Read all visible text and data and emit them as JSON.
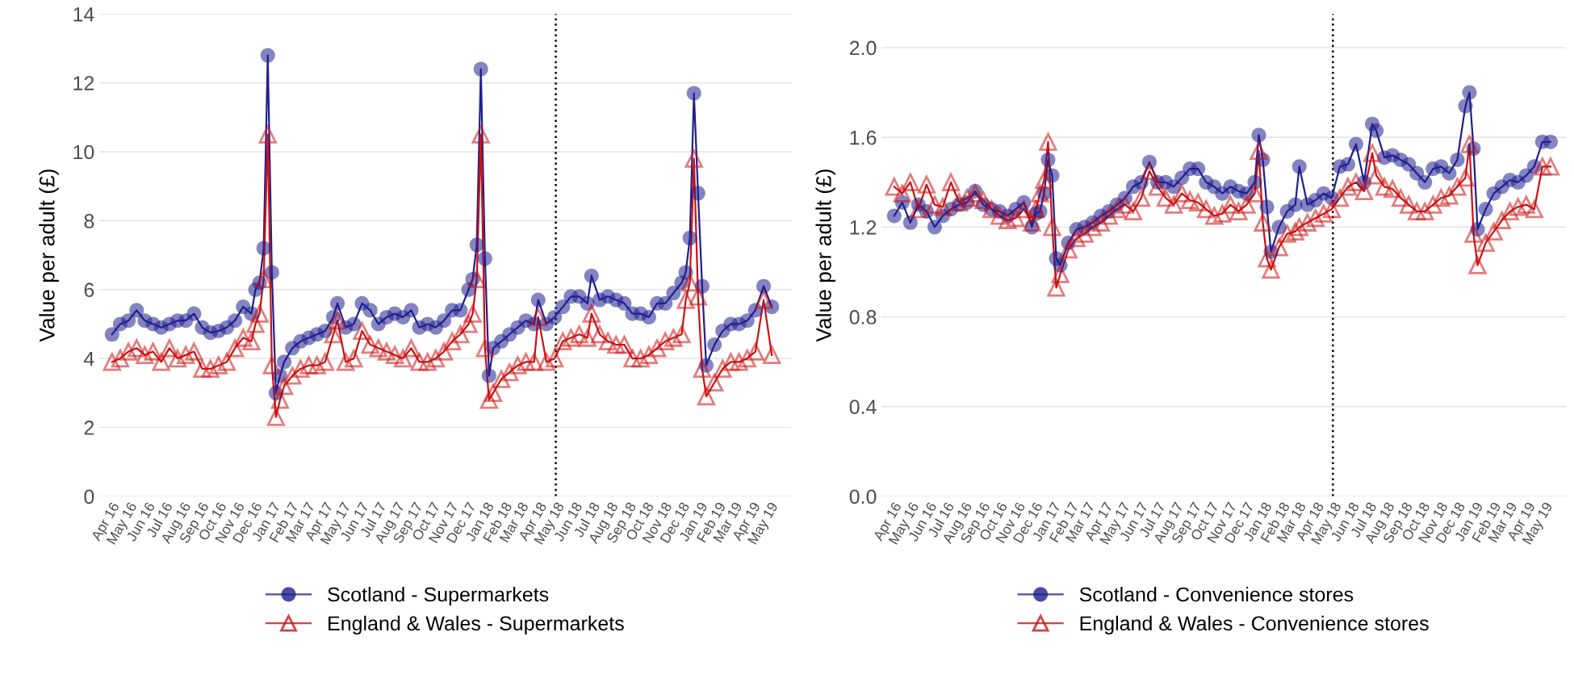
{
  "chart_data": [
    {
      "type": "line",
      "ylabel": "Value per adult (£)",
      "xlim": [
        "2016-03-12",
        "2019-06-08"
      ],
      "ylim": [
        0,
        14
      ],
      "yticks": [
        0,
        2,
        4,
        6,
        8,
        10,
        12,
        14
      ],
      "xticks": [
        {
          "value": "2016-04-01",
          "label": "Apr 16"
        },
        {
          "value": "2016-05-01",
          "label": "May 16"
        },
        {
          "value": "2016-06-01",
          "label": "Jun 16"
        },
        {
          "value": "2016-07-01",
          "label": "Jul 16"
        },
        {
          "value": "2016-08-01",
          "label": "Aug 16"
        },
        {
          "value": "2016-09-01",
          "label": "Sep 16"
        },
        {
          "value": "2016-10-01",
          "label": "Oct 16"
        },
        {
          "value": "2016-11-01",
          "label": "Nov 16"
        },
        {
          "value": "2016-12-01",
          "label": "Dec 16"
        },
        {
          "value": "2017-01-01",
          "label": "Jan 17"
        },
        {
          "value": "2017-02-01",
          "label": "Feb 17"
        },
        {
          "value": "2017-03-01",
          "label": "Mar 17"
        },
        {
          "value": "2017-04-01",
          "label": "Apr 17"
        },
        {
          "value": "2017-05-01",
          "label": "May 17"
        },
        {
          "value": "2017-06-01",
          "label": "Jun 17"
        },
        {
          "value": "2017-07-01",
          "label": "Jul 17"
        },
        {
          "value": "2017-08-01",
          "label": "Aug 17"
        },
        {
          "value": "2017-09-01",
          "label": "Sep 17"
        },
        {
          "value": "2017-10-01",
          "label": "Oct 17"
        },
        {
          "value": "2017-11-01",
          "label": "Nov 17"
        },
        {
          "value": "2017-12-01",
          "label": "Dec 17"
        },
        {
          "value": "2018-01-01",
          "label": "Jan 18"
        },
        {
          "value": "2018-02-01",
          "label": "Feb 18"
        },
        {
          "value": "2018-03-01",
          "label": "Mar 18"
        },
        {
          "value": "2018-04-01",
          "label": "Apr 18"
        },
        {
          "value": "2018-05-01",
          "label": "May 18"
        },
        {
          "value": "2018-06-01",
          "label": "Jun 18"
        },
        {
          "value": "2018-07-01",
          "label": "Jul 18"
        },
        {
          "value": "2018-08-01",
          "label": "Aug 18"
        },
        {
          "value": "2018-09-01",
          "label": "Sep 18"
        },
        {
          "value": "2018-10-01",
          "label": "Oct 18"
        },
        {
          "value": "2018-11-01",
          "label": "Nov 18"
        },
        {
          "value": "2018-12-01",
          "label": "Dec 18"
        },
        {
          "value": "2019-01-01",
          "label": "Jan 19"
        },
        {
          "value": "2019-02-01",
          "label": "Feb 19"
        },
        {
          "value": "2019-03-01",
          "label": "Mar 19"
        },
        {
          "value": "2019-04-01",
          "label": "Apr 19"
        },
        {
          "value": "2019-05-01",
          "label": "May 19"
        }
      ],
      "grid": "y",
      "legend": "bottom",
      "ref_lines": [
        {
          "axis": "x",
          "value": "2018-05-01",
          "line_style": "dotted",
          "color": "#000000"
        }
      ],
      "series": [
        {
          "name": "Scotland - Supermarkets",
          "color": "#1f1f8f",
          "marker": "circle",
          "x": [
            "2016-04-03",
            "2016-04-17",
            "2016-05-01",
            "2016-05-15",
            "2016-05-29",
            "2016-06-12",
            "2016-06-26",
            "2016-07-10",
            "2016-07-24",
            "2016-08-07",
            "2016-08-21",
            "2016-09-04",
            "2016-09-18",
            "2016-10-02",
            "2016-10-16",
            "2016-10-30",
            "2016-11-13",
            "2016-11-27",
            "2016-12-04",
            "2016-12-11",
            "2016-12-18",
            "2016-12-25",
            "2017-01-01",
            "2017-01-08",
            "2017-01-15",
            "2017-01-22",
            "2017-02-05",
            "2017-02-19",
            "2017-03-05",
            "2017-03-19",
            "2017-04-02",
            "2017-04-16",
            "2017-04-23",
            "2017-05-07",
            "2017-05-21",
            "2017-06-04",
            "2017-06-18",
            "2017-07-02",
            "2017-07-16",
            "2017-07-30",
            "2017-08-13",
            "2017-08-27",
            "2017-09-10",
            "2017-09-24",
            "2017-10-08",
            "2017-10-22",
            "2017-11-05",
            "2017-11-19",
            "2017-12-03",
            "2017-12-10",
            "2017-12-17",
            "2017-12-24",
            "2017-12-31",
            "2018-01-07",
            "2018-01-14",
            "2018-01-28",
            "2018-02-11",
            "2018-02-25",
            "2018-03-11",
            "2018-03-25",
            "2018-04-01",
            "2018-04-15",
            "2018-04-29",
            "2018-05-13",
            "2018-05-27",
            "2018-06-10",
            "2018-06-24",
            "2018-07-01",
            "2018-07-15",
            "2018-07-29",
            "2018-08-12",
            "2018-08-26",
            "2018-09-09",
            "2018-09-23",
            "2018-10-07",
            "2018-10-21",
            "2018-11-04",
            "2018-11-18",
            "2018-12-02",
            "2018-12-09",
            "2018-12-16",
            "2018-12-23",
            "2018-12-30",
            "2019-01-06",
            "2019-01-13",
            "2019-01-27",
            "2019-02-10",
            "2019-02-24",
            "2019-03-10",
            "2019-03-24",
            "2019-04-07",
            "2019-04-21",
            "2019-05-05"
          ],
          "values": [
            4.7,
            5.0,
            5.1,
            5.4,
            5.1,
            5.0,
            4.9,
            5.0,
            5.1,
            5.1,
            5.3,
            4.9,
            4.75,
            4.8,
            4.9,
            5.1,
            5.5,
            5.3,
            6.0,
            6.2,
            7.2,
            12.8,
            6.5,
            3.0,
            3.5,
            3.9,
            4.3,
            4.5,
            4.6,
            4.7,
            4.8,
            5.2,
            5.6,
            4.9,
            5.0,
            5.6,
            5.4,
            5.0,
            5.2,
            5.3,
            5.2,
            5.4,
            4.9,
            5.0,
            4.9,
            5.1,
            5.4,
            5.4,
            6.0,
            6.3,
            7.3,
            12.4,
            6.9,
            3.5,
            4.3,
            4.5,
            4.7,
            4.9,
            5.1,
            5.0,
            5.7,
            5.0,
            5.2,
            5.5,
            5.8,
            5.8,
            5.6,
            6.4,
            5.7,
            5.8,
            5.7,
            5.6,
            5.3,
            5.3,
            5.2,
            5.6,
            5.6,
            5.9,
            6.2,
            6.5,
            7.5,
            11.7,
            8.8,
            6.1,
            3.8,
            4.4,
            4.8,
            5.0,
            5.0,
            5.1,
            5.4,
            6.1,
            5.5
          ]
        },
        {
          "name": "England & Wales - Supermarkets",
          "color": "#cc1111",
          "marker": "triangle",
          "x": [
            "2016-04-03",
            "2016-04-17",
            "2016-05-01",
            "2016-05-15",
            "2016-05-29",
            "2016-06-12",
            "2016-06-26",
            "2016-07-10",
            "2016-07-24",
            "2016-08-07",
            "2016-08-21",
            "2016-09-04",
            "2016-09-18",
            "2016-10-02",
            "2016-10-16",
            "2016-10-30",
            "2016-11-13",
            "2016-11-27",
            "2016-12-04",
            "2016-12-11",
            "2016-12-18",
            "2016-12-25",
            "2017-01-01",
            "2017-01-08",
            "2017-01-15",
            "2017-01-22",
            "2017-02-05",
            "2017-02-19",
            "2017-03-05",
            "2017-03-19",
            "2017-04-02",
            "2017-04-16",
            "2017-04-23",
            "2017-05-07",
            "2017-05-21",
            "2017-06-04",
            "2017-06-18",
            "2017-07-02",
            "2017-07-16",
            "2017-07-30",
            "2017-08-13",
            "2017-08-27",
            "2017-09-10",
            "2017-09-24",
            "2017-10-08",
            "2017-10-22",
            "2017-11-05",
            "2017-11-19",
            "2017-12-03",
            "2017-12-10",
            "2017-12-17",
            "2017-12-24",
            "2017-12-31",
            "2018-01-07",
            "2018-01-14",
            "2018-01-28",
            "2018-02-11",
            "2018-02-25",
            "2018-03-11",
            "2018-03-25",
            "2018-04-01",
            "2018-04-15",
            "2018-04-29",
            "2018-05-13",
            "2018-05-27",
            "2018-06-10",
            "2018-06-24",
            "2018-07-01",
            "2018-07-15",
            "2018-07-29",
            "2018-08-12",
            "2018-08-26",
            "2018-09-09",
            "2018-09-23",
            "2018-10-07",
            "2018-10-21",
            "2018-11-04",
            "2018-11-18",
            "2018-12-02",
            "2018-12-09",
            "2018-12-16",
            "2018-12-23",
            "2018-12-30",
            "2019-01-06",
            "2019-01-13",
            "2019-01-27",
            "2019-02-10",
            "2019-02-24",
            "2019-03-10",
            "2019-03-24",
            "2019-04-07",
            "2019-04-21",
            "2019-05-05"
          ],
          "values": [
            3.9,
            4.0,
            4.2,
            4.3,
            4.1,
            4.2,
            3.9,
            4.3,
            4.0,
            4.1,
            4.2,
            3.7,
            3.7,
            3.8,
            3.9,
            4.3,
            4.6,
            4.5,
            5.0,
            5.3,
            6.3,
            10.5,
            3.8,
            2.3,
            2.8,
            3.2,
            3.5,
            3.7,
            3.8,
            3.8,
            3.9,
            4.7,
            5.1,
            3.9,
            4.0,
            4.8,
            4.4,
            4.3,
            4.2,
            4.1,
            4.0,
            4.3,
            3.9,
            3.9,
            4.0,
            4.2,
            4.5,
            4.7,
            5.0,
            5.3,
            6.3,
            10.5,
            4.3,
            2.8,
            3.0,
            3.4,
            3.6,
            3.8,
            3.9,
            3.9,
            5.2,
            3.9,
            4.0,
            4.5,
            4.6,
            4.7,
            4.6,
            5.3,
            4.7,
            4.5,
            4.4,
            4.4,
            4.0,
            4.0,
            4.1,
            4.3,
            4.5,
            4.6,
            4.7,
            5.7,
            6.2,
            9.8,
            5.8,
            3.7,
            2.9,
            3.3,
            3.7,
            3.9,
            3.9,
            4.0,
            4.2,
            5.7,
            4.1
          ]
        }
      ]
    },
    {
      "type": "line",
      "ylabel": "Value per adult (£)",
      "xlim": [
        "2016-03-12",
        "2019-06-08"
      ],
      "ylim": [
        0,
        2.15
      ],
      "yticks": [
        {
          "value": 0,
          "label": "0.0"
        },
        0.4,
        0.8,
        1.2,
        1.6,
        {
          "value": 2,
          "label": "2.0"
        }
      ],
      "xticks": [
        {
          "value": "2016-04-01",
          "label": "Apr 16"
        },
        {
          "value": "2016-05-01",
          "label": "May 16"
        },
        {
          "value": "2016-06-01",
          "label": "Jun 16"
        },
        {
          "value": "2016-07-01",
          "label": "Jul 16"
        },
        {
          "value": "2016-08-01",
          "label": "Aug 16"
        },
        {
          "value": "2016-09-01",
          "label": "Sep 16"
        },
        {
          "value": "2016-10-01",
          "label": "Oct 16"
        },
        {
          "value": "2016-11-01",
          "label": "Nov 16"
        },
        {
          "value": "2016-12-01",
          "label": "Dec 16"
        },
        {
          "value": "2017-01-01",
          "label": "Jan 17"
        },
        {
          "value": "2017-02-01",
          "label": "Feb 17"
        },
        {
          "value": "2017-03-01",
          "label": "Mar 17"
        },
        {
          "value": "2017-04-01",
          "label": "Apr 17"
        },
        {
          "value": "2017-05-01",
          "label": "May 17"
        },
        {
          "value": "2017-06-01",
          "label": "Jun 17"
        },
        {
          "value": "2017-07-01",
          "label": "Jul 17"
        },
        {
          "value": "2017-08-01",
          "label": "Aug 17"
        },
        {
          "value": "2017-09-01",
          "label": "Sep 17"
        },
        {
          "value": "2017-10-01",
          "label": "Oct 17"
        },
        {
          "value": "2017-11-01",
          "label": "Nov 17"
        },
        {
          "value": "2017-12-01",
          "label": "Dec 17"
        },
        {
          "value": "2018-01-01",
          "label": "Jan 18"
        },
        {
          "value": "2018-02-01",
          "label": "Feb 18"
        },
        {
          "value": "2018-03-01",
          "label": "Mar 18"
        },
        {
          "value": "2018-04-01",
          "label": "Apr 18"
        },
        {
          "value": "2018-05-01",
          "label": "May 18"
        },
        {
          "value": "2018-06-01",
          "label": "Jun 18"
        },
        {
          "value": "2018-07-01",
          "label": "Jul 18"
        },
        {
          "value": "2018-08-01",
          "label": "Aug 18"
        },
        {
          "value": "2018-09-01",
          "label": "Sep 18"
        },
        {
          "value": "2018-10-01",
          "label": "Oct 18"
        },
        {
          "value": "2018-11-01",
          "label": "Nov 18"
        },
        {
          "value": "2018-12-01",
          "label": "Dec 18"
        },
        {
          "value": "2019-01-01",
          "label": "Jan 19"
        },
        {
          "value": "2019-02-01",
          "label": "Feb 19"
        },
        {
          "value": "2019-03-01",
          "label": "Mar 19"
        },
        {
          "value": "2019-04-01",
          "label": "Apr 19"
        },
        {
          "value": "2019-05-01",
          "label": "May 19"
        }
      ],
      "grid": "y",
      "legend": "bottom",
      "ref_lines": [
        {
          "axis": "x",
          "value": "2018-05-01",
          "line_style": "dotted",
          "color": "#000000"
        }
      ],
      "series": [
        {
          "name": "Scotland - Convenience stores",
          "color": "#1f1f8f",
          "marker": "circle",
          "x": [
            "2016-04-03",
            "2016-04-17",
            "2016-05-01",
            "2016-05-15",
            "2016-05-29",
            "2016-06-12",
            "2016-06-26",
            "2016-07-10",
            "2016-07-24",
            "2016-08-07",
            "2016-08-21",
            "2016-09-04",
            "2016-09-18",
            "2016-10-02",
            "2016-10-16",
            "2016-10-30",
            "2016-11-13",
            "2016-11-27",
            "2016-12-04",
            "2016-12-11",
            "2016-12-18",
            "2016-12-25",
            "2017-01-01",
            "2017-01-08",
            "2017-01-15",
            "2017-01-29",
            "2017-02-12",
            "2017-02-26",
            "2017-03-12",
            "2017-03-26",
            "2017-04-09",
            "2017-04-23",
            "2017-05-07",
            "2017-05-21",
            "2017-06-04",
            "2017-06-18",
            "2017-07-02",
            "2017-07-16",
            "2017-07-30",
            "2017-08-13",
            "2017-08-27",
            "2017-09-10",
            "2017-09-24",
            "2017-10-08",
            "2017-10-22",
            "2017-11-05",
            "2017-11-19",
            "2017-12-03",
            "2017-12-17",
            "2017-12-24",
            "2017-12-31",
            "2018-01-07",
            "2018-01-14",
            "2018-01-28",
            "2018-02-11",
            "2018-02-25",
            "2018-03-04",
            "2018-03-18",
            "2018-04-01",
            "2018-04-15",
            "2018-04-29",
            "2018-05-13",
            "2018-05-27",
            "2018-06-10",
            "2018-06-24",
            "2018-07-08",
            "2018-07-15",
            "2018-07-29",
            "2018-08-12",
            "2018-08-26",
            "2018-09-09",
            "2018-09-23",
            "2018-10-07",
            "2018-10-21",
            "2018-11-04",
            "2018-11-18",
            "2018-12-02",
            "2018-12-16",
            "2018-12-23",
            "2018-12-30",
            "2019-01-06",
            "2019-01-20",
            "2019-02-03",
            "2019-02-17",
            "2019-03-03",
            "2019-03-17",
            "2019-03-31",
            "2019-04-14",
            "2019-04-28",
            "2019-05-12"
          ],
          "values": [
            1.25,
            1.31,
            1.22,
            1.3,
            1.27,
            1.2,
            1.25,
            1.28,
            1.3,
            1.31,
            1.36,
            1.3,
            1.28,
            1.27,
            1.25,
            1.28,
            1.31,
            1.2,
            1.26,
            1.27,
            1.35,
            1.5,
            1.43,
            1.06,
            1.03,
            1.13,
            1.19,
            1.2,
            1.22,
            1.25,
            1.27,
            1.3,
            1.33,
            1.38,
            1.4,
            1.49,
            1.4,
            1.4,
            1.38,
            1.42,
            1.46,
            1.46,
            1.4,
            1.38,
            1.35,
            1.38,
            1.36,
            1.35,
            1.4,
            1.61,
            1.5,
            1.29,
            1.09,
            1.2,
            1.27,
            1.3,
            1.47,
            1.3,
            1.32,
            1.35,
            1.33,
            1.47,
            1.48,
            1.57,
            1.4,
            1.66,
            1.63,
            1.51,
            1.52,
            1.5,
            1.48,
            1.44,
            1.4,
            1.46,
            1.47,
            1.44,
            1.5,
            1.74,
            1.8,
            1.55,
            1.19,
            1.28,
            1.35,
            1.38,
            1.41,
            1.4,
            1.43,
            1.47,
            1.58,
            1.58
          ]
        },
        {
          "name": "England & Wales - Convenience stores",
          "color": "#cc1111",
          "marker": "triangle",
          "x": [
            "2016-04-03",
            "2016-04-17",
            "2016-05-01",
            "2016-05-15",
            "2016-05-29",
            "2016-06-12",
            "2016-06-26",
            "2016-07-10",
            "2016-07-24",
            "2016-08-07",
            "2016-08-21",
            "2016-09-04",
            "2016-09-18",
            "2016-10-02",
            "2016-10-16",
            "2016-10-30",
            "2016-11-13",
            "2016-11-27",
            "2016-12-04",
            "2016-12-11",
            "2016-12-18",
            "2016-12-25",
            "2017-01-01",
            "2017-01-08",
            "2017-01-15",
            "2017-01-29",
            "2017-02-12",
            "2017-02-26",
            "2017-03-12",
            "2017-03-26",
            "2017-04-09",
            "2017-04-23",
            "2017-05-07",
            "2017-05-21",
            "2017-06-04",
            "2017-06-18",
            "2017-07-02",
            "2017-07-16",
            "2017-07-30",
            "2017-08-13",
            "2017-08-27",
            "2017-09-10",
            "2017-09-24",
            "2017-10-08",
            "2017-10-22",
            "2017-11-05",
            "2017-11-19",
            "2017-12-03",
            "2017-12-17",
            "2017-12-24",
            "2017-12-31",
            "2018-01-07",
            "2018-01-14",
            "2018-01-28",
            "2018-02-11",
            "2018-02-25",
            "2018-03-04",
            "2018-03-18",
            "2018-04-01",
            "2018-04-15",
            "2018-04-29",
            "2018-05-13",
            "2018-05-27",
            "2018-06-10",
            "2018-06-24",
            "2018-07-08",
            "2018-07-15",
            "2018-07-29",
            "2018-08-12",
            "2018-08-26",
            "2018-09-09",
            "2018-09-23",
            "2018-10-07",
            "2018-10-21",
            "2018-11-04",
            "2018-11-18",
            "2018-12-02",
            "2018-12-16",
            "2018-12-23",
            "2018-12-30",
            "2019-01-06",
            "2019-01-20",
            "2019-02-03",
            "2019-02-17",
            "2019-03-03",
            "2019-03-17",
            "2019-03-31",
            "2019-04-14",
            "2019-04-28",
            "2019-05-12"
          ],
          "values": [
            1.38,
            1.35,
            1.4,
            1.28,
            1.39,
            1.3,
            1.29,
            1.4,
            1.31,
            1.33,
            1.35,
            1.32,
            1.28,
            1.25,
            1.23,
            1.24,
            1.28,
            1.22,
            1.28,
            1.35,
            1.41,
            1.58,
            1.2,
            0.93,
            0.99,
            1.1,
            1.15,
            1.17,
            1.2,
            1.22,
            1.25,
            1.28,
            1.3,
            1.27,
            1.33,
            1.45,
            1.38,
            1.33,
            1.3,
            1.35,
            1.32,
            1.31,
            1.28,
            1.25,
            1.26,
            1.3,
            1.27,
            1.3,
            1.35,
            1.54,
            1.22,
            1.06,
            1.01,
            1.11,
            1.17,
            1.18,
            1.2,
            1.22,
            1.24,
            1.26,
            1.28,
            1.33,
            1.38,
            1.4,
            1.36,
            1.53,
            1.43,
            1.38,
            1.37,
            1.33,
            1.3,
            1.27,
            1.27,
            1.3,
            1.33,
            1.34,
            1.38,
            1.42,
            1.57,
            1.17,
            1.03,
            1.13,
            1.18,
            1.23,
            1.27,
            1.29,
            1.3,
            1.28,
            1.47,
            1.47
          ]
        }
      ]
    }
  ]
}
